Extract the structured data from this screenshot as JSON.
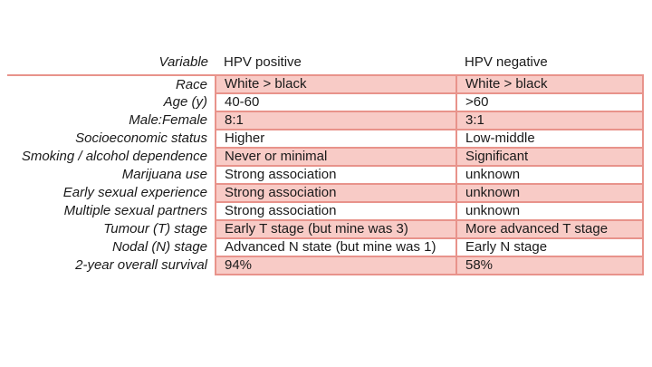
{
  "colors": {
    "accent": "#e8938b",
    "fill": "#f8cbc6",
    "text": "#1a1a1a",
    "page_bg": "#ffffff"
  },
  "table": {
    "headers": {
      "variable": "Variable",
      "positive": "HPV positive",
      "negative": "HPV negative"
    },
    "rows": [
      {
        "label": "Race",
        "positive": "White > black",
        "negative": "White > black"
      },
      {
        "label": "Age (y)",
        "positive": "40-60",
        "negative": ">60"
      },
      {
        "label": "Male:Female",
        "positive": "8:1",
        "negative": "3:1"
      },
      {
        "label": "Socioeconomic status",
        "positive": "Higher",
        "negative": "Low-middle"
      },
      {
        "label": "Smoking / alcohol dependence",
        "positive": "Never or minimal",
        "negative": "Significant"
      },
      {
        "label": "Marijuana use",
        "positive": "Strong association",
        "negative": "unknown"
      },
      {
        "label": "Early sexual experience",
        "positive": "Strong association",
        "negative": "unknown"
      },
      {
        "label": "Multiple sexual partners",
        "positive": "Strong association",
        "negative": "unknown"
      },
      {
        "label": "Tumour (T) stage",
        "positive": "Early T stage (but mine was 3)",
        "negative": "More advanced T stage"
      },
      {
        "label": "Nodal (N) stage",
        "positive": "Advanced N state (but mine was 1)",
        "negative": "Early N stage"
      },
      {
        "label": "2-year overall survival",
        "positive": "94%",
        "negative": "58%"
      }
    ]
  }
}
